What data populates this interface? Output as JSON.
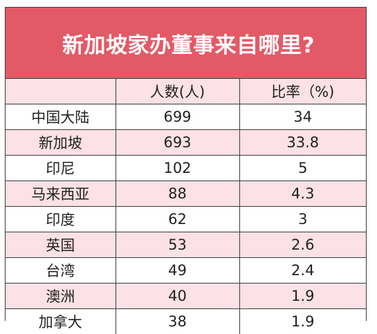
{
  "title": "新加坡家办董事来自哪里?",
  "columns": [
    "",
    "人数(人)",
    "比率（%)"
  ],
  "rows": [
    {
      "region": "中国大陆",
      "count": "699",
      "ratio": "34"
    },
    {
      "region": "新加坡",
      "count": "693",
      "ratio": "33.8"
    },
    {
      "region": "印尼",
      "count": "102",
      "ratio": "5"
    },
    {
      "region": "马来西亚",
      "count": "88",
      "ratio": "4.3"
    },
    {
      "region": "印度",
      "count": "62",
      "ratio": "3"
    },
    {
      "region": "英国",
      "count": "53",
      "ratio": "2.6"
    },
    {
      "region": "台湾",
      "count": "49",
      "ratio": "2.4"
    },
    {
      "region": "澳洲",
      "count": "40",
      "ratio": "1.9"
    },
    {
      "region": "加拿大",
      "count": "38",
      "ratio": "1.9"
    }
  ],
  "colors": {
    "title_bg": "#e35a67",
    "stripe": "#fce1e6"
  }
}
